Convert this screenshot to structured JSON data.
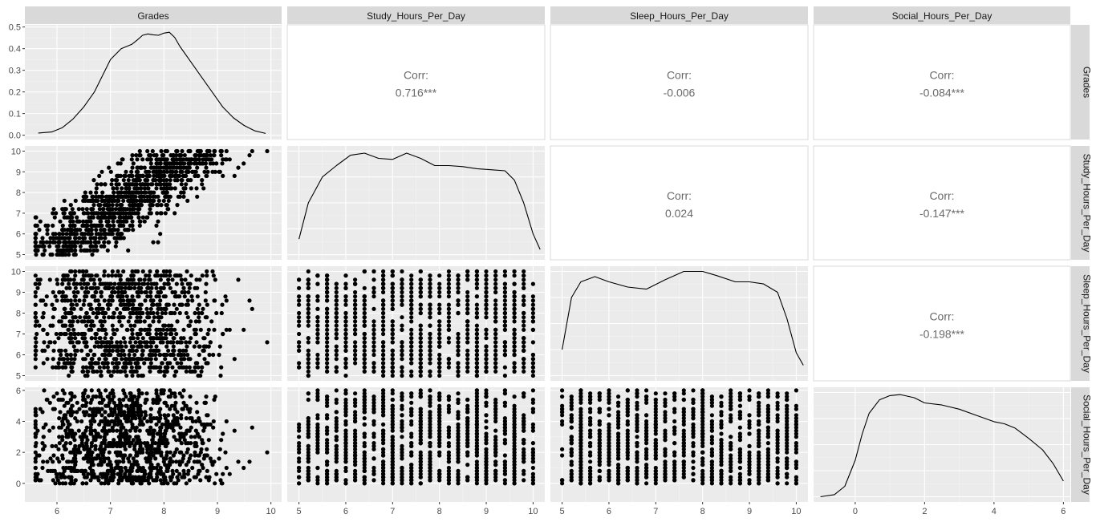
{
  "chart_data": {
    "type": "scatter-matrix",
    "variables": [
      "Grades",
      "Study_Hours_Per_Day",
      "Sleep_Hours_Per_Day",
      "Social_Hours_Per_Day"
    ],
    "corr_label": "Corr:",
    "correlations": [
      {
        "row": "Grades",
        "col": "Study_Hours_Per_Day",
        "value": "0.716***"
      },
      {
        "row": "Grades",
        "col": "Sleep_Hours_Per_Day",
        "value": "-0.006"
      },
      {
        "row": "Grades",
        "col": "Social_Hours_Per_Day",
        "value": "-0.084***"
      },
      {
        "row": "Study_Hours_Per_Day",
        "col": "Sleep_Hours_Per_Day",
        "value": "0.024"
      },
      {
        "row": "Study_Hours_Per_Day",
        "col": "Social_Hours_Per_Day",
        "value": "-0.147***"
      },
      {
        "row": "Sleep_Hours_Per_Day",
        "col": "Social_Hours_Per_Day",
        "value": "-0.198***"
      }
    ],
    "x_ticks": {
      "Grades": [
        6,
        7,
        8,
        9,
        10
      ],
      "Study_Hours_Per_Day": [
        5,
        6,
        7,
        8,
        9,
        10
      ],
      "Sleep_Hours_Per_Day": [
        5,
        6,
        7,
        8,
        9,
        10
      ],
      "Social_Hours_Per_Day": [
        0,
        2,
        4,
        6
      ]
    },
    "x_ranges": {
      "Grades": [
        5.4,
        10.2
      ],
      "Study_Hours_Per_Day": [
        4.75,
        10.25
      ],
      "Sleep_Hours_Per_Day": [
        4.75,
        10.25
      ],
      "Social_Hours_Per_Day": [
        -1.2,
        6.2
      ]
    },
    "density_y_ticks": [
      "0.0",
      "0.1",
      "0.2",
      "0.3",
      "0.4",
      "0.5"
    ],
    "density_y_range": [
      -0.02,
      0.51
    ],
    "row_y_ticks": {
      "Study_Hours_Per_Day": [
        5,
        6,
        7,
        8,
        9,
        10
      ],
      "Sleep_Hours_Per_Day": [
        5,
        6,
        7,
        8,
        9,
        10
      ],
      "Social_Hours_Per_Day": [
        0,
        2,
        4,
        6
      ]
    },
    "row_y_ranges": {
      "Study_Hours_Per_Day": [
        4.75,
        10.25
      ],
      "Sleep_Hours_Per_Day": [
        4.75,
        10.25
      ],
      "Social_Hours_Per_Day": [
        -1.2,
        6.2
      ]
    },
    "densities": {
      "Grades": {
        "x": [
          5.65,
          5.9,
          6.1,
          6.3,
          6.5,
          6.7,
          6.9,
          7.0,
          7.2,
          7.4,
          7.5,
          7.6,
          7.7,
          7.8,
          7.9,
          8.0,
          8.1,
          8.2,
          8.3,
          8.5,
          8.7,
          8.9,
          9.1,
          9.3,
          9.5,
          9.7,
          9.9
        ],
        "y": [
          0.01,
          0.015,
          0.035,
          0.075,
          0.13,
          0.2,
          0.3,
          0.35,
          0.4,
          0.42,
          0.44,
          0.462,
          0.468,
          0.464,
          0.462,
          0.472,
          0.476,
          0.452,
          0.41,
          0.34,
          0.27,
          0.2,
          0.13,
          0.08,
          0.045,
          0.02,
          0.008
        ]
      },
      "Study_Hours_Per_Day": {
        "x": [
          5.0,
          5.2,
          5.5,
          5.8,
          6.1,
          6.4,
          6.7,
          7.0,
          7.3,
          7.6,
          7.9,
          8.2,
          8.5,
          8.8,
          9.1,
          9.4,
          9.6,
          9.8,
          10.0,
          10.15
        ],
        "y": [
          0.15,
          0.5,
          0.75,
          0.86,
          0.96,
          0.98,
          0.93,
          0.92,
          0.98,
          0.93,
          0.86,
          0.86,
          0.85,
          0.83,
          0.82,
          0.81,
          0.72,
          0.5,
          0.2,
          0.05
        ]
      },
      "Sleep_Hours_Per_Day": {
        "x": [
          5.0,
          5.2,
          5.4,
          5.7,
          6.0,
          6.4,
          6.8,
          7.2,
          7.6,
          8.0,
          8.3,
          8.7,
          9.0,
          9.3,
          9.6,
          9.8,
          10.0,
          10.15
        ],
        "y": [
          0.25,
          0.75,
          0.9,
          0.95,
          0.9,
          0.85,
          0.83,
          0.92,
          1.0,
          1.0,
          0.96,
          0.9,
          0.9,
          0.88,
          0.8,
          0.55,
          0.22,
          0.1
        ]
      },
      "Social_Hours_Per_Day": {
        "x": [
          -1.0,
          -0.6,
          -0.3,
          0.0,
          0.2,
          0.4,
          0.7,
          1.0,
          1.3,
          1.7,
          2.0,
          2.5,
          3.0,
          3.5,
          4.0,
          4.3,
          4.6,
          5.0,
          5.4,
          5.7,
          6.0
        ],
        "y": [
          0.0,
          0.02,
          0.1,
          0.35,
          0.6,
          0.8,
          0.93,
          0.97,
          0.98,
          0.95,
          0.9,
          0.88,
          0.84,
          0.78,
          0.72,
          0.7,
          0.66,
          0.56,
          0.45,
          0.32,
          0.15
        ]
      }
    },
    "scatter_points_per_panel": 1100,
    "point_color": "#000000",
    "panel_background": "#ebebeb",
    "strip_background": "#d9d9d9",
    "corr_text_color": "#6a6a6a"
  }
}
